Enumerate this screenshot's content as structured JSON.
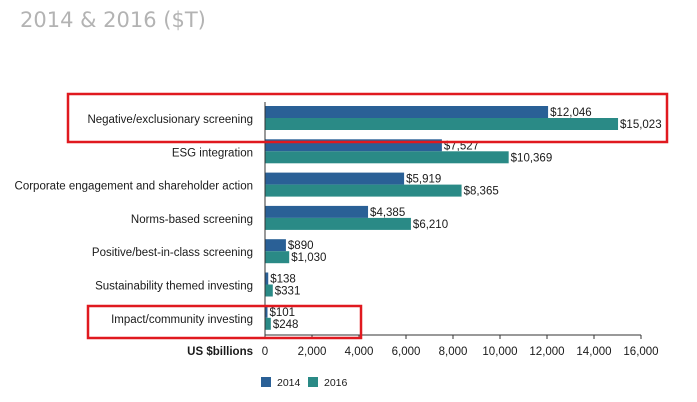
{
  "title": "2014 & 2016 ($T)",
  "colors": {
    "series_2014": "#2a6096",
    "series_2016": "#2a8a86",
    "highlight": "#e0191f",
    "axis": "#333333"
  },
  "chart_data": {
    "type": "bar",
    "orientation": "horizontal",
    "title": "2014 & 2016 ($T)",
    "xlabel": "US $billions",
    "ylabel": "",
    "xlim": [
      0,
      16000
    ],
    "xticks": [
      0,
      2000,
      4000,
      6000,
      8000,
      10000,
      12000,
      14000,
      16000
    ],
    "xtick_labels": [
      "0",
      "2,000",
      "4,000",
      "6,000",
      "8,000",
      "10,000",
      "12,000",
      "14,000",
      "16,000"
    ],
    "grid": false,
    "legend_position": "bottom-center",
    "categories": [
      "Negative/exclusionary screening",
      "ESG integration",
      "Corporate engagement and shareholder action",
      "Norms-based screening",
      "Positive/best-in-class screening",
      "Sustainability themed investing",
      "Impact/community investing"
    ],
    "series": [
      {
        "name": "2014",
        "values": [
          12046,
          7527,
          5919,
          4385,
          890,
          138,
          101
        ],
        "labels": [
          "$12,046",
          "$7,527",
          "$5,919",
          "$4,385",
          "$890",
          "$138",
          "$101"
        ]
      },
      {
        "name": "2016",
        "values": [
          15023,
          10369,
          8365,
          6210,
          1030,
          331,
          248
        ],
        "labels": [
          "$15,023",
          "$10,369",
          "$8,365",
          "$6,210",
          "$1,030",
          "$331",
          "$248"
        ]
      }
    ],
    "highlighted_categories": [
      "Negative/exclusionary screening",
      "Impact/community investing"
    ]
  }
}
